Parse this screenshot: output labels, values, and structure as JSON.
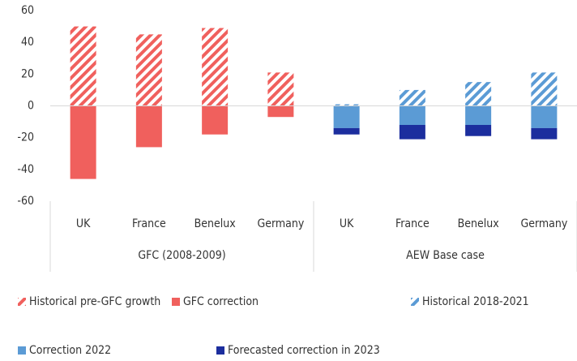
{
  "chart_data": {
    "type": "bar",
    "stacked": true,
    "groups": [
      {
        "name": "GFC (2008-2009)",
        "categories": [
          "UK",
          "France",
          "Benelux",
          "Germany"
        ]
      },
      {
        "name": "AEW Base case",
        "categories": [
          "UK",
          "France",
          "Benelux",
          "Germany"
        ]
      }
    ],
    "series": [
      {
        "name": "Historical pre-GFC growth",
        "color": "#f0605d",
        "pattern": "hatch",
        "values": [
          50,
          45,
          49,
          21,
          null,
          null,
          null,
          null
        ]
      },
      {
        "name": "GFC correction",
        "color": "#f0605d",
        "values": [
          -46,
          -26,
          -18,
          -7,
          null,
          null,
          null,
          null
        ]
      },
      {
        "name": "Historical 2018-2021",
        "color": "#5b9bd5",
        "pattern": "hatch",
        "values": [
          null,
          null,
          null,
          null,
          1,
          10,
          15,
          21
        ]
      },
      {
        "name": "Correction 2022",
        "color": "#5b9bd5",
        "values": [
          null,
          null,
          null,
          null,
          -14,
          -12,
          -12,
          -14
        ]
      },
      {
        "name": "Forecasted correction in 2023",
        "color": "#1c2e9e",
        "values": [
          null,
          null,
          null,
          null,
          -4,
          -9,
          -7,
          -7
        ]
      }
    ],
    "ylim": [
      -60,
      60
    ],
    "yticks": [
      -60,
      -40,
      -20,
      0,
      20,
      40,
      60
    ],
    "grid": false
  }
}
